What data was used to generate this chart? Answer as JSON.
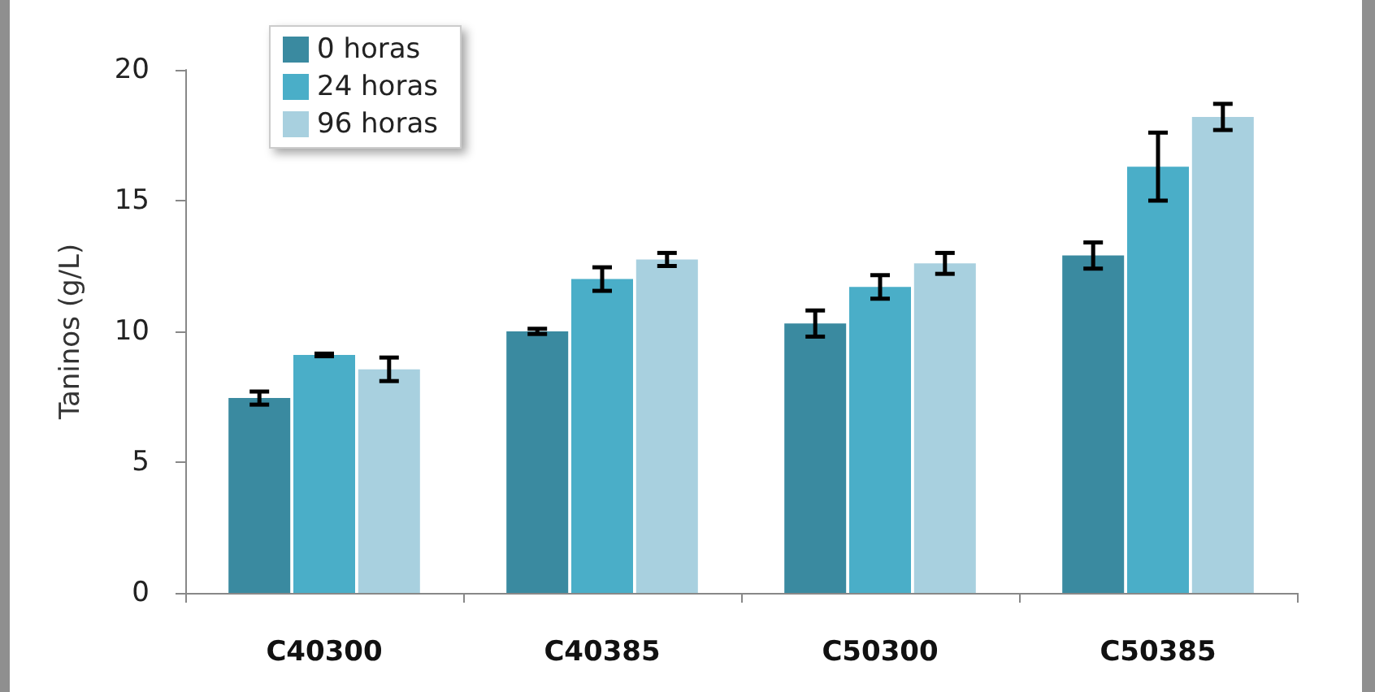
{
  "chart_data": {
    "type": "bar",
    "ylabel": "Taninos (g/L)",
    "categories": [
      "C40300",
      "C40385",
      "C50300",
      "C50385"
    ],
    "series": [
      {
        "name": "0 horas",
        "color": "#3a8aa0",
        "values": [
          7.45,
          10.0,
          10.3,
          12.9
        ],
        "errors": [
          0.25,
          0.1,
          0.5,
          0.5
        ]
      },
      {
        "name": "24 horas",
        "color": "#4aaec8",
        "values": [
          9.1,
          12.0,
          11.7,
          16.3
        ],
        "errors": [
          0.05,
          0.45,
          0.45,
          1.3
        ]
      },
      {
        "name": "96 horas",
        "color": "#a8d0df",
        "values": [
          8.55,
          12.75,
          12.6,
          18.2
        ],
        "errors": [
          0.45,
          0.25,
          0.4,
          0.5
        ]
      }
    ],
    "ylim": [
      0,
      20
    ],
    "yticks": [
      0,
      5,
      10,
      15,
      20
    ],
    "grid": false,
    "legend": "top left"
  }
}
